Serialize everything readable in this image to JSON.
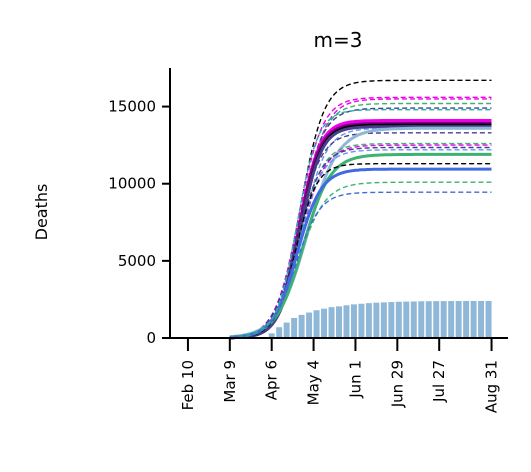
{
  "chart_data": {
    "type": "line",
    "title": "m=3",
    "xlabel": "",
    "ylabel": "Deaths",
    "ylim": [
      0,
      17500
    ],
    "y_ticks": [
      0,
      5000,
      10000,
      15000
    ],
    "y_tick_labels": [
      "0",
      "5000",
      "10000",
      "15000"
    ],
    "x_ticks": [
      "2020-02-10",
      "2020-03-09",
      "2020-04-06",
      "2020-05-04",
      "2020-06-01",
      "2020-06-29",
      "2020-07-27",
      "2020-08-31"
    ],
    "x_tick_labels": [
      "Feb 10",
      "Mar 9",
      "Apr 6",
      "May 4",
      "Jun 1",
      "Jun 29",
      "Jul 27",
      "Aug 31"
    ],
    "xlim": [
      "2020-01-29",
      "2020-09-11"
    ],
    "bars": {
      "color": "#8fb8d8",
      "x": [
        "2020-04-06",
        "2020-04-11",
        "2020-04-16",
        "2020-04-21",
        "2020-04-26",
        "2020-05-01",
        "2020-05-06",
        "2020-05-11",
        "2020-05-16",
        "2020-05-21",
        "2020-05-26",
        "2020-05-31",
        "2020-06-05",
        "2020-06-10",
        "2020-06-15",
        "2020-06-20",
        "2020-06-25",
        "2020-06-30",
        "2020-07-05",
        "2020-07-10",
        "2020-07-15",
        "2020-07-20",
        "2020-07-25",
        "2020-07-30",
        "2020-08-04",
        "2020-08-09",
        "2020-08-14",
        "2020-08-19",
        "2020-08-24",
        "2020-08-29"
      ],
      "values": [
        300,
        700,
        1000,
        1300,
        1500,
        1650,
        1800,
        1900,
        2000,
        2050,
        2120,
        2180,
        2220,
        2260,
        2290,
        2310,
        2330,
        2350,
        2360,
        2370,
        2380,
        2385,
        2390,
        2393,
        2395,
        2397,
        2398,
        2399,
        2400,
        2400
      ]
    },
    "series": [
      {
        "color": "#000000",
        "style": "dashed",
        "plateau": 16700,
        "midpoint": "2020-04-25",
        "width": 8
      },
      {
        "color": "#ee00ee",
        "style": "dashed",
        "plateau": 15600,
        "midpoint": "2020-04-24",
        "width": 8
      },
      {
        "color": "#ee00ee",
        "style": "dashed",
        "plateau": 15500,
        "midpoint": "2020-04-26",
        "width": 8
      },
      {
        "color": "#3cb371",
        "style": "dashed",
        "plateau": 15200,
        "midpoint": "2020-04-25",
        "width": 8
      },
      {
        "color": "#483d8b",
        "style": "dashed",
        "plateau": 14900,
        "midpoint": "2020-04-24",
        "width": 8
      },
      {
        "color": "#ee00ee",
        "style": "solid",
        "plateau": 14100,
        "midpoint": "2020-04-24",
        "width": 7
      },
      {
        "color": "#ee00ee",
        "style": "solid",
        "plateau": 14000,
        "midpoint": "2020-04-25",
        "width": 7
      },
      {
        "color": "#800080",
        "style": "solid",
        "plateau": 13900,
        "midpoint": "2020-04-24",
        "width": 7
      },
      {
        "color": "#000000",
        "style": "solid",
        "plateau": 13800,
        "midpoint": "2020-04-25",
        "width": 7
      },
      {
        "color": "#483d8b",
        "style": "solid",
        "plateau": 13700,
        "midpoint": "2020-04-25",
        "width": 7
      },
      {
        "color": "#6495ed",
        "style": "dashed",
        "plateau": 13600,
        "midpoint": "2020-04-26",
        "width": 8
      },
      {
        "color": "#483d8b",
        "style": "dashed",
        "plateau": 13300,
        "midpoint": "2020-04-23",
        "width": 8
      },
      {
        "color": "#8fb8d8",
        "style": "solid",
        "plateau": 13600,
        "midpoint": "2020-04-30",
        "width": 10
      },
      {
        "color": "#3cb371",
        "style": "dashed",
        "plateau": 12600,
        "midpoint": "2020-04-24",
        "width": 8
      },
      {
        "color": "#ee00ee",
        "style": "dashed",
        "plateau": 12500,
        "midpoint": "2020-04-25",
        "width": 8
      },
      {
        "color": "#483d8b",
        "style": "dashed",
        "plateau": 12350,
        "midpoint": "2020-04-23",
        "width": 8
      },
      {
        "color": "#6495ed",
        "style": "dashed",
        "plateau": 12200,
        "midpoint": "2020-04-24",
        "width": 8
      },
      {
        "color": "#3cb371",
        "style": "solid",
        "plateau": 11900,
        "midpoint": "2020-04-27",
        "width": 9
      },
      {
        "color": "#000000",
        "style": "dashed",
        "plateau": 11300,
        "midpoint": "2020-04-22",
        "width": 7
      },
      {
        "color": "#4169e1",
        "style": "solid",
        "plateau": 10950,
        "midpoint": "2020-04-23",
        "width": 8
      },
      {
        "color": "#3cb371",
        "style": "dashed",
        "plateau": 10100,
        "midpoint": "2020-04-24",
        "width": 9
      },
      {
        "color": "#4169e1",
        "style": "dashed",
        "plateau": 9450,
        "midpoint": "2020-04-22",
        "width": 8
      },
      {
        "color": "#20b2aa",
        "style": "dashed",
        "plateau": 14800,
        "midpoint": "2020-04-23",
        "width": 7
      }
    ]
  }
}
